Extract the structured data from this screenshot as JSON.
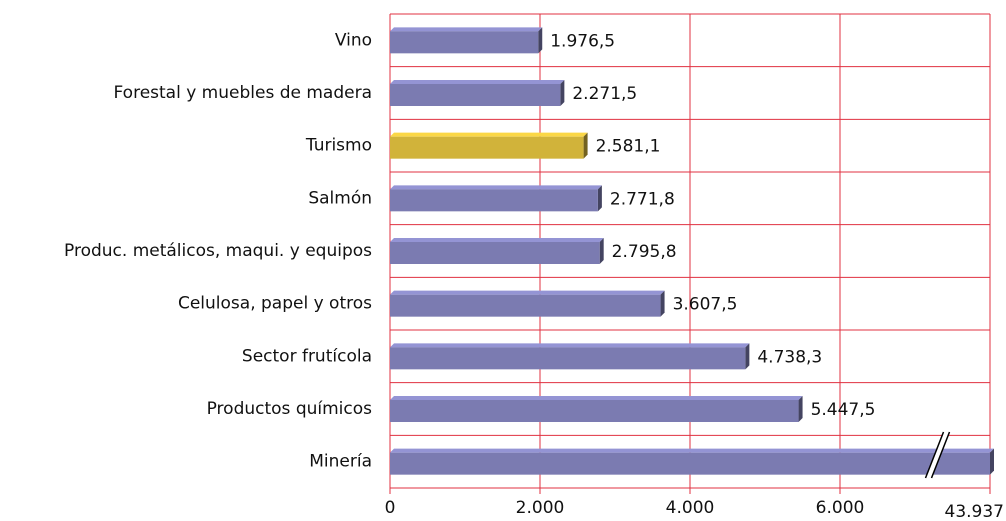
{
  "chart_data": {
    "type": "bar",
    "orientation": "horizontal",
    "categories": [
      "Vino",
      "Forestal y muebles de madera",
      "Turismo",
      "Salmón",
      "Produc. metálicos, maqui. y equipos",
      "Celulosa, papel y otros",
      "Sector frutícola",
      "Productos químicos",
      "Minería"
    ],
    "values": [
      1976.5,
      2271.5,
      2581.1,
      2771.8,
      2795.8,
      3607.5,
      4738.3,
      5447.5,
      43937
    ],
    "value_labels": [
      "1.976,5",
      "2.271,5",
      "2.581,1",
      "2.771,8",
      "2.795,8",
      "3.607,5",
      "4.738,3",
      "5.447,5",
      null
    ],
    "colors": [
      "#7b7bb1",
      "#7b7bb1",
      "#d1b33a",
      "#7b7bb1",
      "#7b7bb1",
      "#7b7bb1",
      "#7b7bb1",
      "#7b7bb1",
      "#7b7bb1"
    ],
    "xlim": [
      0,
      43937
    ],
    "xbreak": [
      7300,
      43237
    ],
    "xticks": [
      0,
      {
        "value": 2000,
        "label": "2.000"
      },
      {
        "value": 4000,
        "label": "4.000"
      },
      {
        "value": 6000,
        "label": "6.000"
      },
      {
        "value": 43937,
        "label": "43.937"
      }
    ],
    "grid": true,
    "grid_color": "#e03040"
  }
}
